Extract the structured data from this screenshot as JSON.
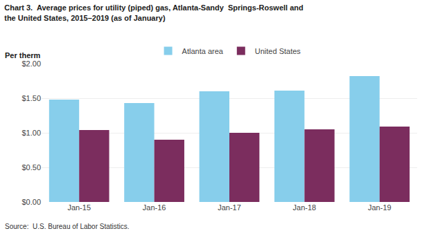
{
  "chart_data": {
    "type": "bar",
    "title": "Chart 3.  Average prices for utility (piped) gas, Atlanta-Sandy  Springs-Roswell and\nthe United States, 2015–2019 (as of January)",
    "ylabel": "Per therm",
    "source": "Source:  U.S. Bureau of Labor Statistics.",
    "categories": [
      "Jan-15",
      "Jan-16",
      "Jan-17",
      "Jan-18",
      "Jan-19"
    ],
    "series": [
      {
        "name": "Atlanta area",
        "color": "#87CEEB",
        "values": [
          1.48,
          1.43,
          1.6,
          1.61,
          1.82
        ]
      },
      {
        "name": "United States",
        "color": "#7B2D5E",
        "values": [
          1.04,
          0.9,
          1.0,
          1.05,
          1.09
        ]
      }
    ],
    "ylim": [
      0.0,
      2.0
    ],
    "yticks": [
      {
        "value": 0.0,
        "label": "$0.00"
      },
      {
        "value": 0.5,
        "label": "$0.50"
      },
      {
        "value": 1.0,
        "label": "$1.00"
      },
      {
        "value": 1.5,
        "label": "$1.50"
      },
      {
        "value": 2.0,
        "label": "$2.00"
      }
    ],
    "grid": true,
    "legend": "top"
  }
}
